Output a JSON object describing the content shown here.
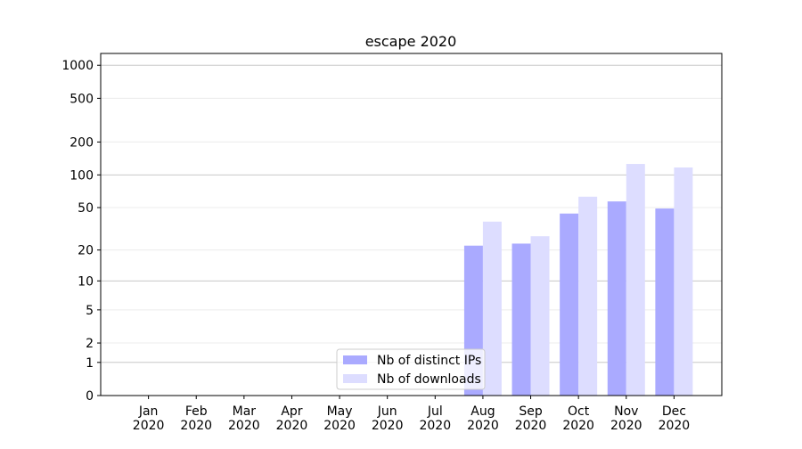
{
  "chart_data": {
    "type": "bar",
    "title": "escape 2020",
    "categories": [
      [
        "Jan",
        "2020"
      ],
      [
        "Feb",
        "2020"
      ],
      [
        "Mar",
        "2020"
      ],
      [
        "Apr",
        "2020"
      ],
      [
        "May",
        "2020"
      ],
      [
        "Jun",
        "2020"
      ],
      [
        "Jul",
        "2020"
      ],
      [
        "Aug",
        "2020"
      ],
      [
        "Sep",
        "2020"
      ],
      [
        "Oct",
        "2020"
      ],
      [
        "Nov",
        "2020"
      ],
      [
        "Dec",
        "2020"
      ]
    ],
    "series": [
      {
        "name": "Nb of distinct IPs",
        "color": "#aaaaff",
        "values": [
          0,
          0,
          0,
          0,
          0,
          0,
          0,
          22,
          23,
          44,
          57,
          49
        ]
      },
      {
        "name": "Nb of downloads",
        "color": "#ddddff",
        "values": [
          0,
          0,
          0,
          0,
          0,
          0,
          0,
          37,
          27,
          63,
          126,
          117
        ]
      }
    ],
    "y_scale": "log1p",
    "ylim": [
      0,
      1280
    ],
    "yticks": [
      0,
      1,
      2,
      5,
      10,
      20,
      50,
      100,
      200,
      500,
      1000
    ],
    "grid": true,
    "legend": "lower center"
  }
}
